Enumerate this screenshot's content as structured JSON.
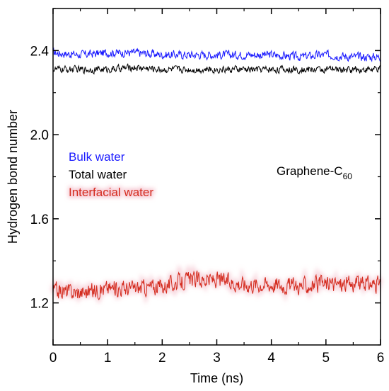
{
  "chart_data": {
    "type": "line",
    "xlabel": "Time (ns)",
    "ylabel": "Hydrogen bond number",
    "xlim": [
      0,
      6
    ],
    "ylim": [
      1.0,
      2.6
    ],
    "x_ticks": [
      "0",
      "1",
      "2",
      "3",
      "4",
      "5",
      "6"
    ],
    "y_ticks": [
      "1.2",
      "1.6",
      "2.0",
      "2.4"
    ],
    "x_tick_values": [
      0,
      1,
      2,
      3,
      4,
      5,
      6
    ],
    "y_tick_values": [
      1.2,
      1.6,
      2.0,
      2.4
    ],
    "grid": false,
    "legend_position": "left-center",
    "annotation": {
      "text": "Graphene-C",
      "subscript": "60"
    },
    "series": [
      {
        "name": "Bulk water",
        "color": "#1a1aff",
        "x": [
          0,
          0.5,
          1,
          1.5,
          2,
          2.5,
          3,
          3.5,
          4,
          4.5,
          5,
          5.5,
          6
        ],
        "values": [
          2.39,
          2.38,
          2.39,
          2.39,
          2.38,
          2.38,
          2.38,
          2.38,
          2.38,
          2.37,
          2.38,
          2.37,
          2.37
        ]
      },
      {
        "name": "Total water",
        "color": "#000000",
        "x": [
          0,
          0.5,
          1,
          1.5,
          2,
          2.5,
          3,
          3.5,
          4,
          4.5,
          5,
          5.5,
          6
        ],
        "values": [
          2.31,
          2.31,
          2.31,
          2.32,
          2.31,
          2.31,
          2.31,
          2.31,
          2.31,
          2.31,
          2.31,
          2.31,
          2.31
        ]
      },
      {
        "name": "Interfacial water",
        "color": "#d42b1e",
        "x": [
          0,
          0.5,
          1,
          1.5,
          2,
          2.5,
          3,
          3.5,
          4,
          4.5,
          5,
          5.5,
          6
        ],
        "values": [
          1.26,
          1.25,
          1.27,
          1.27,
          1.28,
          1.31,
          1.31,
          1.29,
          1.29,
          1.28,
          1.29,
          1.29,
          1.29
        ]
      }
    ]
  }
}
